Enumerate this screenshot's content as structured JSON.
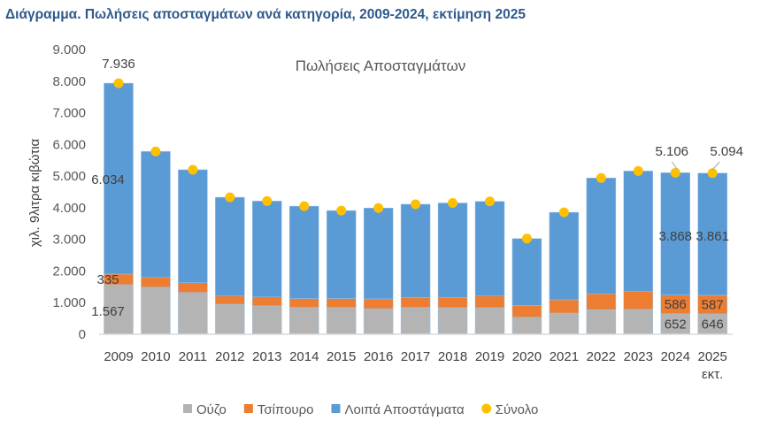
{
  "heading": "Διάγραμμα. Πωλήσεις αποσταγμάτων ανά κατηγορία, 2009-2024, εκτίμηση 2025",
  "chart_data": {
    "type": "bar",
    "stacked": true,
    "title": "Πωλήσεις Αποσταγμάτων",
    "ylabel": "χιλ. 9λιτρα κιβώτια",
    "xlabel": "",
    "ylim": [
      0,
      9000
    ],
    "yticks": [
      0,
      1000,
      2000,
      3000,
      4000,
      5000,
      6000,
      7000,
      8000,
      9000
    ],
    "ytick_labels": [
      "0",
      "1.000",
      "2.000",
      "3.000",
      "4.000",
      "5.000",
      "6.000",
      "7.000",
      "8.000",
      "9.000"
    ],
    "categories": [
      "2009",
      "2010",
      "2011",
      "2012",
      "2013",
      "2014",
      "2015",
      "2016",
      "2017",
      "2018",
      "2019",
      "2020",
      "2021",
      "2022",
      "2023",
      "2024",
      "2025"
    ],
    "category_sublabels": {
      "2025": "εκτ."
    },
    "grid": false,
    "legend": "bottom",
    "series": [
      {
        "name": "Ούζο",
        "color": "#b4b4b4",
        "values": [
          1567,
          1490,
          1320,
          950,
          900,
          850,
          850,
          810,
          850,
          840,
          840,
          540,
          670,
          780,
          790,
          652,
          646
        ]
      },
      {
        "name": "Τσίπουρο",
        "color": "#ed7d31",
        "values": [
          335,
          305,
          310,
          260,
          280,
          280,
          280,
          310,
          310,
          320,
          370,
          370,
          420,
          500,
          560,
          586,
          587
        ]
      },
      {
        "name": "Λοιπά Αποστάγματα",
        "color": "#5b9bd5",
        "values": [
          6034,
          3985,
          3570,
          3120,
          3030,
          2920,
          2780,
          2870,
          2950,
          2990,
          2990,
          2115,
          2765,
          3660,
          3810,
          3868,
          3861
        ]
      }
    ],
    "total": {
      "name": "Σύνολο",
      "type": "scatter",
      "color": "#ffc000",
      "values": [
        7936,
        5780,
        5200,
        4330,
        4210,
        4050,
        3910,
        3990,
        4110,
        4150,
        4200,
        3025,
        3855,
        4940,
        5160,
        5106,
        5094
      ]
    },
    "data_labels": [
      {
        "category": "2009",
        "series": "Σύνολο",
        "text": "7.936"
      },
      {
        "category": "2009",
        "series": "Λοιπά Αποστάγματα",
        "text": "6.034"
      },
      {
        "category": "2009",
        "series": "Τσίπουρο",
        "text": "335"
      },
      {
        "category": "2009",
        "series": "Ούζο",
        "text": "1.567"
      },
      {
        "category": "2024",
        "series": "Σύνολο",
        "text": "5.106"
      },
      {
        "category": "2024",
        "series": "Λοιπά Αποστάγματα",
        "text": "3.868"
      },
      {
        "category": "2024",
        "series": "Τσίπουρο",
        "text": "586"
      },
      {
        "category": "2024",
        "series": "Ούζο",
        "text": "652"
      },
      {
        "category": "2025",
        "series": "Σύνολο",
        "text": "5.094"
      },
      {
        "category": "2025",
        "series": "Λοιπά Αποστάγματα",
        "text": "3.861"
      },
      {
        "category": "2025",
        "series": "Τσίπουρο",
        "text": "587"
      },
      {
        "category": "2025",
        "series": "Ούζο",
        "text": "646"
      }
    ]
  }
}
